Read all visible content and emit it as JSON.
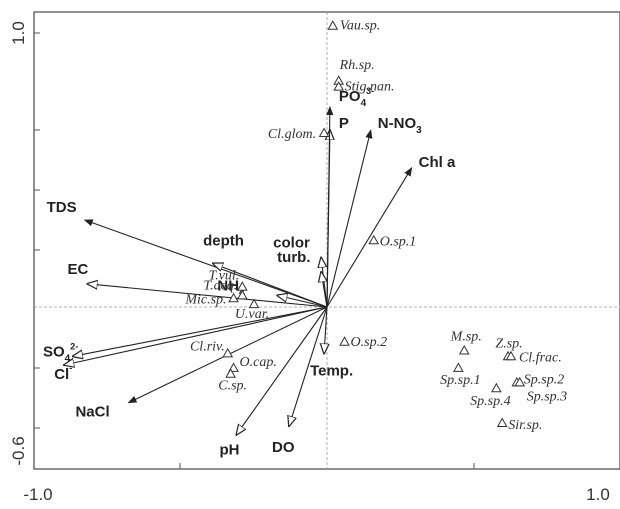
{
  "chart_data": {
    "type": "scatter",
    "subtype": "biplot",
    "xlim": [
      -1.0,
      1.0
    ],
    "ylim": [
      -0.6,
      1.0
    ],
    "x_tick_labels": [
      "-1.0",
      "1.0"
    ],
    "y_tick_labels": [
      "1.0",
      "-0.6"
    ],
    "grid": false,
    "zero_lines": true,
    "env_vectors": [
      {
        "label": "TDS",
        "x": -0.83,
        "y": 0.3
      },
      {
        "label": "EC",
        "x": -0.82,
        "y": 0.08
      },
      {
        "label": "SO",
        "sub": "4",
        "sup": "2-",
        "x": -0.87,
        "y": -0.17
      },
      {
        "label": "Cl",
        "sup": "-",
        "x": -0.9,
        "y": -0.2
      },
      {
        "label": "NaCl",
        "x": -0.68,
        "y": -0.33
      },
      {
        "label": "pH",
        "x": -0.31,
        "y": -0.44
      },
      {
        "label": "DO",
        "x": -0.13,
        "y": -0.41
      },
      {
        "label": "Temp.",
        "x": -0.01,
        "y": -0.16
      },
      {
        "label": "depth",
        "x": -0.39,
        "y": 0.15
      },
      {
        "label": "color",
        "x": -0.02,
        "y": 0.17
      },
      {
        "label": "turb.",
        "x": -0.02,
        "y": 0.12
      },
      {
        "label": "NH",
        "sub": "4",
        "x": -0.17,
        "y": 0.04
      },
      {
        "label": "P",
        "x": 0.01,
        "y": 0.61
      },
      {
        "label": "PO",
        "sub": "4",
        "sup": "3-",
        "x": 0.01,
        "y": 0.69
      },
      {
        "label": "N-NO",
        "sub": "3",
        "x": 0.15,
        "y": 0.61
      },
      {
        "label": "Chl a",
        "x": 0.29,
        "y": 0.48
      }
    ],
    "species": [
      {
        "label": "Vau.sp.",
        "x": 0.02,
        "y": 0.97
      },
      {
        "label": "Rh.sp.",
        "x": 0.04,
        "y": 0.78
      },
      {
        "label": "Stig.nan.",
        "x": 0.04,
        "y": 0.76
      },
      {
        "label": "Cl.glom.",
        "x": -0.01,
        "y": 0.6
      },
      {
        "label": "O.sp.1",
        "x": 0.16,
        "y": 0.23
      },
      {
        "label": "T.vul.",
        "x": -0.29,
        "y": 0.07
      },
      {
        "label": "T.aeq.",
        "x": -0.29,
        "y": 0.04
      },
      {
        "label": "Mic.sp.",
        "x": -0.32,
        "y": 0.03
      },
      {
        "label": "U.var.",
        "x": -0.25,
        "y": 0.01
      },
      {
        "label": "O.sp.2",
        "x": 0.06,
        "y": -0.12
      },
      {
        "label": "Cl.riv.",
        "x": -0.34,
        "y": -0.16
      },
      {
        "label": "O.cap.",
        "x": -0.32,
        "y": -0.21
      },
      {
        "label": "C.sp.",
        "x": -0.33,
        "y": -0.23
      },
      {
        "label": "M.sp.",
        "x": 0.47,
        "y": -0.15
      },
      {
        "label": "Sp.sp.1",
        "x": 0.45,
        "y": -0.21
      },
      {
        "label": "Z.sp.",
        "x": 0.62,
        "y": -0.17
      },
      {
        "label": "Cl.frac.",
        "x": 0.63,
        "y": -0.17
      },
      {
        "label": "Sp.sp.2",
        "x": 0.65,
        "y": -0.26
      },
      {
        "label": "Sp.sp.3",
        "x": 0.66,
        "y": -0.26
      },
      {
        "label": "Sp.sp.4",
        "x": 0.58,
        "y": -0.28
      },
      {
        "label": "Sir.sp.",
        "x": 0.6,
        "y": -0.4
      }
    ]
  }
}
